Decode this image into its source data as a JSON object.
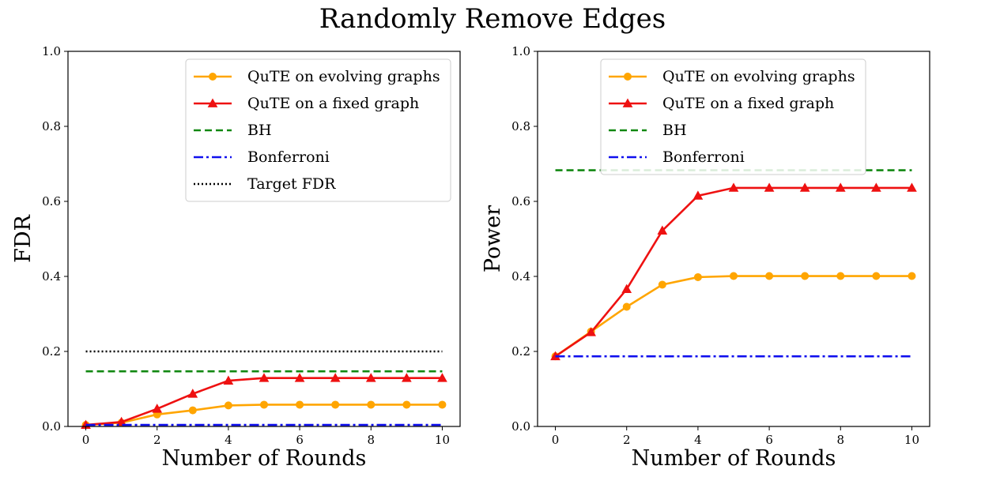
{
  "figure": {
    "title": "Randomly Remove Edges"
  },
  "series_styles": {
    "QuTE on evolving graphs": {
      "color": "#ffa500",
      "dash": "",
      "marker": "circle"
    },
    "QuTE on a fixed graph": {
      "color": "#ee1111",
      "dash": "",
      "marker": "triangle"
    },
    "BH": {
      "color": "#118811",
      "dash": "9,5",
      "marker": "none"
    },
    "Bonferroni": {
      "color": "#1010ee",
      "dash": "12,4,3,4",
      "marker": "none"
    },
    "Target FDR": {
      "color": "#000000",
      "dash": "2,3",
      "marker": "none"
    }
  },
  "chart_data": [
    {
      "type": "line",
      "xlabel": "Number of Rounds",
      "ylabel": "FDR",
      "xlim": [
        -0.5,
        10.5
      ],
      "ylim": [
        0,
        1
      ],
      "xticks": [
        0,
        2,
        4,
        6,
        8,
        10
      ],
      "yticks": [
        "0.0",
        "0.2",
        "0.4",
        "0.6",
        "0.8",
        "1.0"
      ],
      "grid": false,
      "legend_position": "top-right",
      "x": [
        0,
        1,
        2,
        3,
        4,
        5,
        6,
        7,
        8,
        9,
        10
      ],
      "series": [
        {
          "name": "QuTE on evolving graphs",
          "values": [
            0.004,
            0.01,
            0.032,
            0.043,
            0.056,
            0.058,
            0.058,
            0.058,
            0.058,
            0.058,
            0.058
          ]
        },
        {
          "name": "QuTE on a fixed graph",
          "values": [
            0.004,
            0.012,
            0.047,
            0.087,
            0.122,
            0.129,
            0.129,
            0.129,
            0.129,
            0.129,
            0.129
          ]
        },
        {
          "name": "BH",
          "values": [
            0.147,
            0.147,
            0.147,
            0.147,
            0.147,
            0.147,
            0.147,
            0.147,
            0.147,
            0.147,
            0.147
          ]
        },
        {
          "name": "Bonferroni",
          "values": [
            0.004,
            0.004,
            0.004,
            0.004,
            0.004,
            0.004,
            0.004,
            0.004,
            0.004,
            0.004,
            0.004
          ]
        },
        {
          "name": "Target FDR",
          "values": [
            0.2,
            0.2,
            0.2,
            0.2,
            0.2,
            0.2,
            0.2,
            0.2,
            0.2,
            0.2,
            0.2
          ]
        }
      ]
    },
    {
      "type": "line",
      "xlabel": "Number of Rounds",
      "ylabel": "Power",
      "xlim": [
        -0.5,
        10.5
      ],
      "ylim": [
        0,
        1
      ],
      "xticks": [
        0,
        2,
        4,
        6,
        8,
        10
      ],
      "yticks": [
        "0.0",
        "0.2",
        "0.4",
        "0.6",
        "0.8",
        "1.0"
      ],
      "grid": false,
      "legend_position": "top-center",
      "x": [
        0,
        1,
        2,
        3,
        4,
        5,
        6,
        7,
        8,
        9,
        10
      ],
      "series": [
        {
          "name": "QuTE on evolving graphs",
          "values": [
            0.187,
            0.253,
            0.319,
            0.378,
            0.398,
            0.401,
            0.401,
            0.401,
            0.401,
            0.401,
            0.401
          ]
        },
        {
          "name": "QuTE on a fixed graph",
          "values": [
            0.187,
            0.251,
            0.366,
            0.522,
            0.615,
            0.636,
            0.636,
            0.636,
            0.636,
            0.636,
            0.636
          ]
        },
        {
          "name": "BH",
          "values": [
            0.683,
            0.683,
            0.683,
            0.683,
            0.683,
            0.683,
            0.683,
            0.683,
            0.683,
            0.683,
            0.683
          ]
        },
        {
          "name": "Bonferroni",
          "values": [
            0.187,
            0.187,
            0.187,
            0.187,
            0.187,
            0.187,
            0.187,
            0.187,
            0.187,
            0.187,
            0.187
          ]
        }
      ]
    }
  ]
}
